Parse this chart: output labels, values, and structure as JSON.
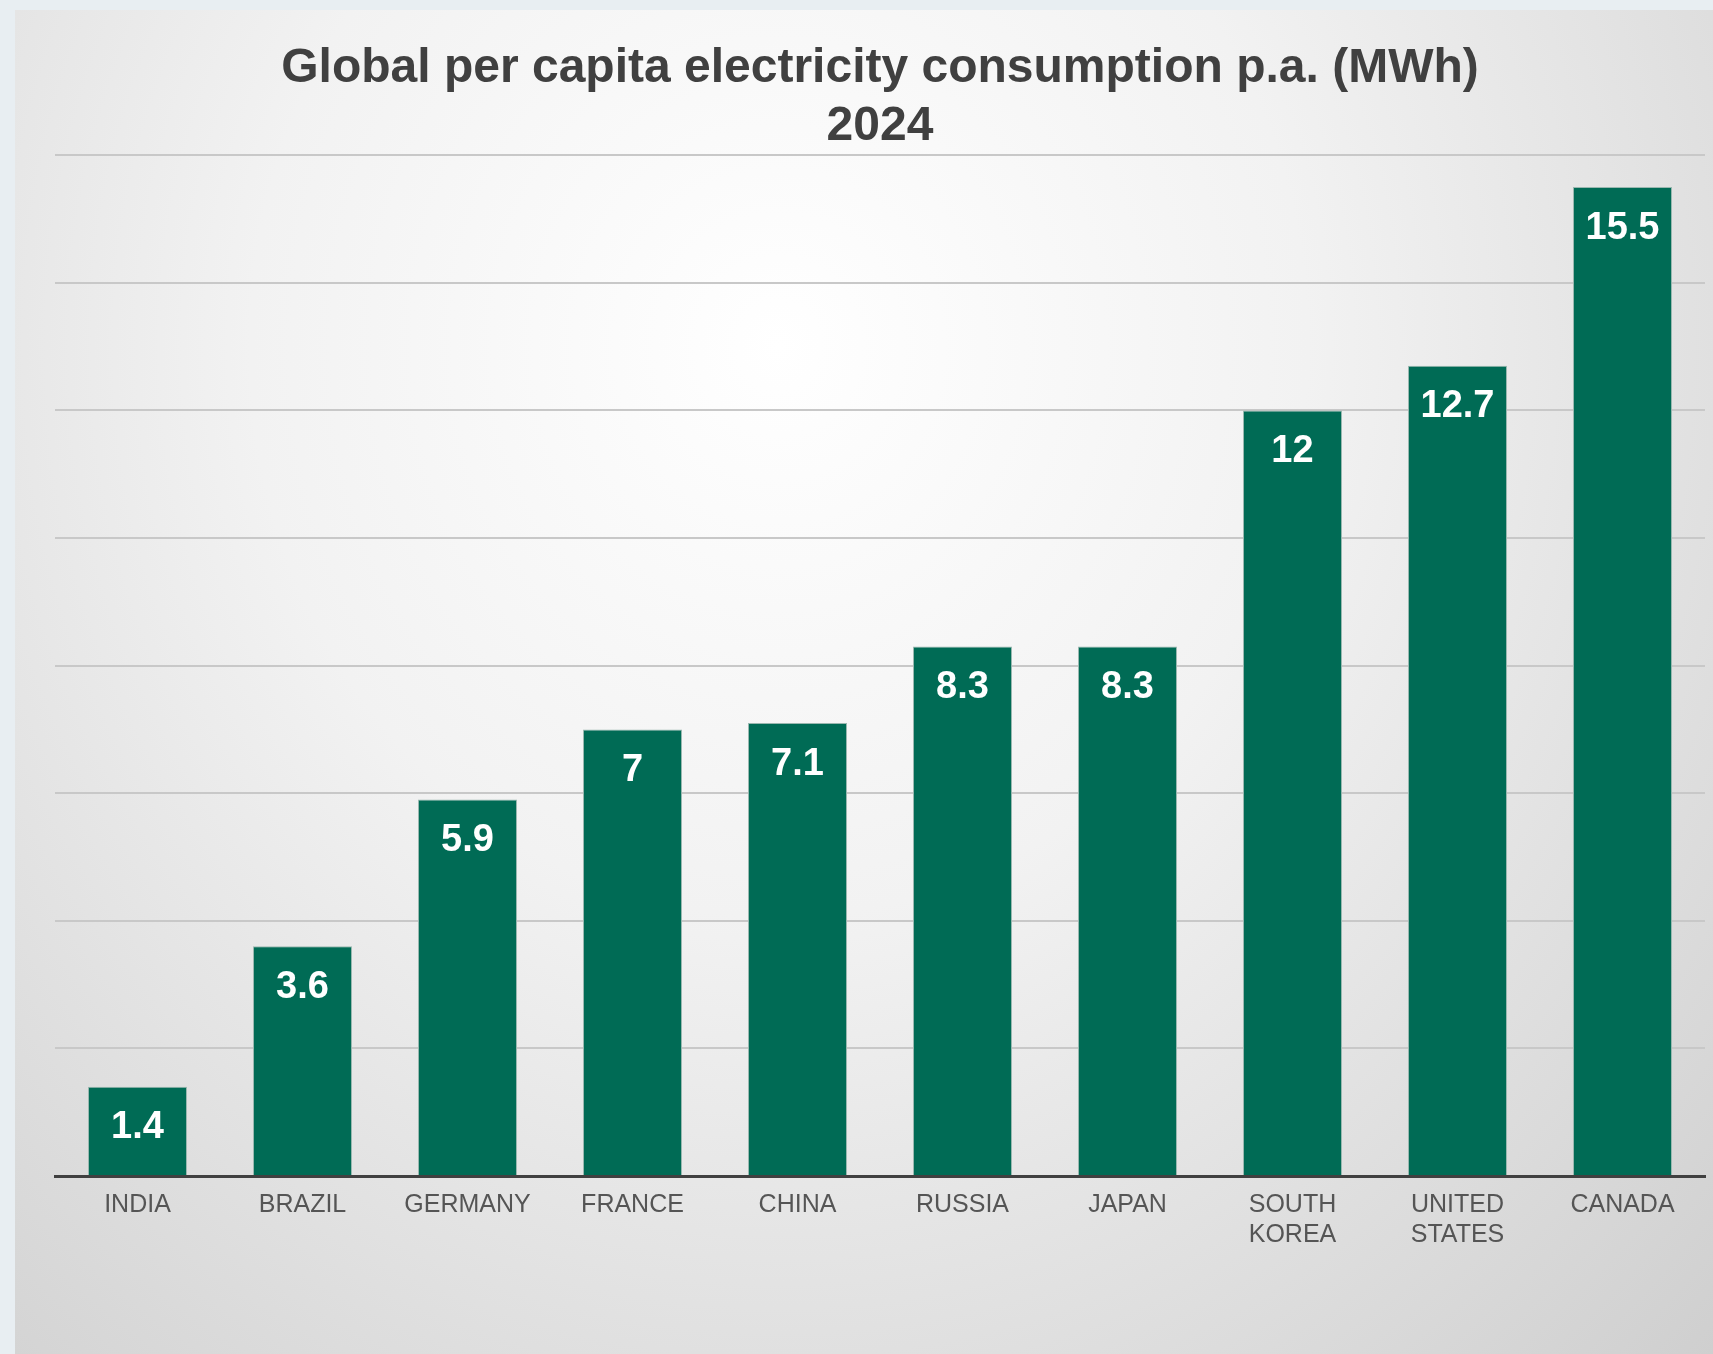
{
  "chart_data": {
    "type": "bar",
    "title": "Global per capita electricity consumption p.a. (MWh)",
    "subtitle": "2024",
    "categories": [
      "INDIA",
      "BRAZIL",
      "GERMANY",
      "FRANCE",
      "CHINA",
      "RUSSIA",
      "JAPAN",
      "SOUTH KOREA",
      "UNITED STATES",
      "CANADA"
    ],
    "values": [
      1.4,
      3.6,
      5.9,
      7,
      7.1,
      8.3,
      8.3,
      12,
      12.7,
      15.5
    ],
    "color": "#006b55",
    "ylim": [
      0,
      16
    ],
    "yticks": [
      {
        "value": 0,
        "label": null
      },
      {
        "value": 2,
        "label": null
      },
      {
        "value": 4,
        "label": null
      },
      {
        "value": 6,
        "label": null
      },
      {
        "value": 8,
        "label": null
      },
      {
        "value": 10,
        "label": null
      },
      {
        "value": 12,
        "label": null
      },
      {
        "value": 14,
        "label": null
      },
      {
        "value": 16,
        "label": null
      }
    ],
    "grid": "y",
    "tick_labels": "x",
    "data_labels": true,
    "legend": false
  }
}
